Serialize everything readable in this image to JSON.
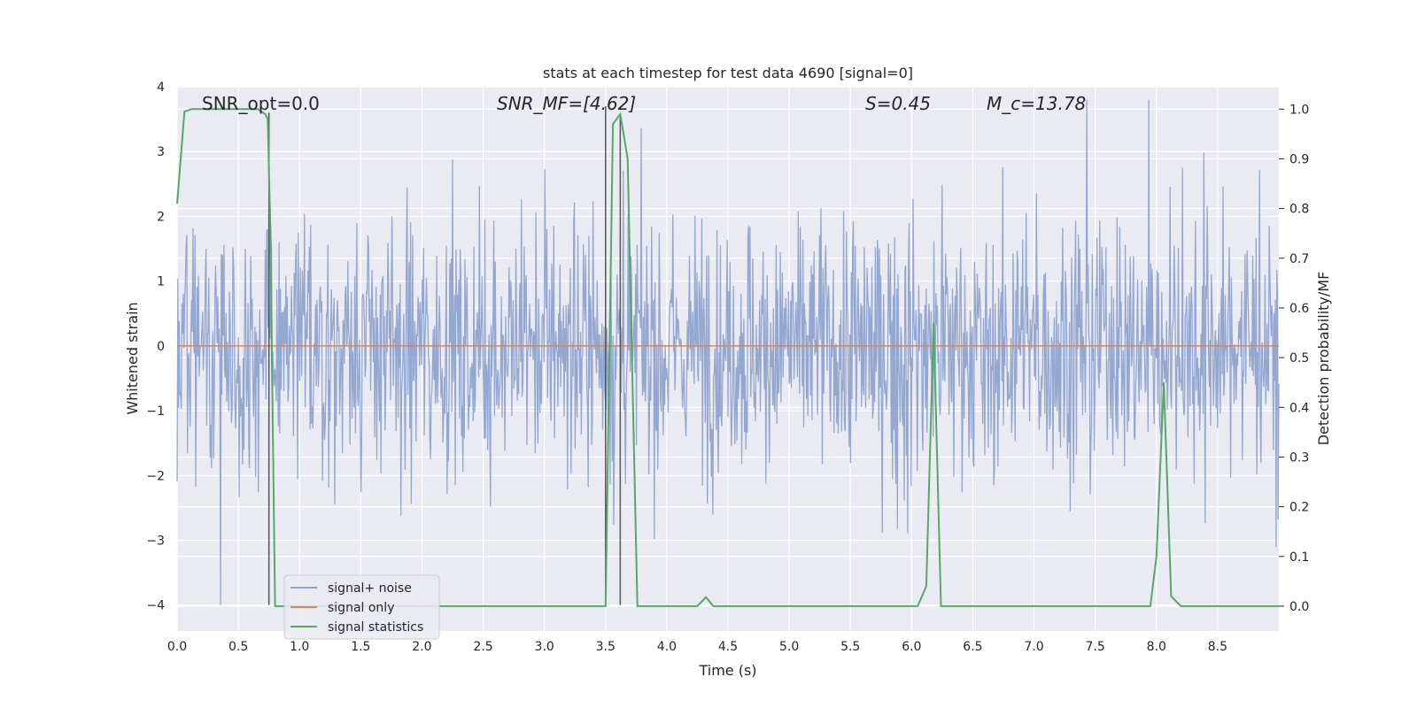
{
  "chart_data": {
    "type": "line",
    "title": "stats at each timestep for test data 4690 [signal=0]",
    "xlabel": "Time (s)",
    "ylabel": "Whitened strain",
    "ylabel_right": "Detection probability/MF",
    "xlim": [
      0,
      9.0
    ],
    "ylim": [
      -4.4,
      4.0
    ],
    "ylim_right": [
      -0.05,
      1.045
    ],
    "x_ticks": [
      0.0,
      0.5,
      1.0,
      1.5,
      2.0,
      2.5,
      3.0,
      3.5,
      4.0,
      4.5,
      5.0,
      5.5,
      6.0,
      6.5,
      7.0,
      7.5,
      8.0,
      8.5
    ],
    "x_tick_labels": [
      "0.0",
      "0.5",
      "1.0",
      "1.5",
      "2.0",
      "2.5",
      "3.0",
      "3.5",
      "4.0",
      "4.5",
      "5.0",
      "5.5",
      "6.0",
      "6.5",
      "7.0",
      "7.5",
      "8.0",
      "8.5"
    ],
    "y_ticks": [
      4,
      3,
      2,
      1,
      0,
      -1,
      -2,
      -3,
      -4
    ],
    "y_tick_labels": [
      "4",
      "3",
      "2",
      "1",
      "0",
      "−1",
      "−2",
      "−3",
      "−4"
    ],
    "y2_ticks": [
      1.0,
      0.9,
      0.8,
      0.7,
      0.6,
      0.5,
      0.4,
      0.3,
      0.2,
      0.1,
      0.0
    ],
    "y2_tick_labels": [
      "1.0",
      "0.9",
      "0.8",
      "0.7",
      "0.6",
      "0.5",
      "0.4",
      "0.3",
      "0.2",
      "0.1",
      "0.0"
    ],
    "grid": true,
    "legend_position": "bottom-left",
    "annotations": [
      {
        "id": "snr-opt",
        "text": "SNR_opt=0.0",
        "x": 0.2
      },
      {
        "id": "snr-mf",
        "text": "SNR_MF=[4.62]",
        "x": 2.6
      },
      {
        "id": "s-value",
        "text": "S=0.45",
        "x": 5.6
      },
      {
        "id": "mc-value",
        "text": "M_c=13.78",
        "x": 6.6
      }
    ],
    "series": [
      {
        "name": "signal+ noise",
        "color": "#8fa3cf",
        "kind": "strain",
        "amplitude_typical": 1.5,
        "amplitude_peak": 4.0
      },
      {
        "name": "signal only",
        "color": "#dd8452",
        "kind": "constant",
        "value": 0.0
      },
      {
        "name": "signal statistics",
        "color": "#55a868",
        "kind": "probability",
        "x": [
          0.0,
          0.06,
          0.12,
          0.2,
          0.4,
          0.55,
          0.66,
          0.72,
          0.74,
          0.76,
          0.8,
          3.48,
          3.5,
          3.56,
          3.62,
          3.68,
          3.76,
          4.25,
          4.32,
          4.38,
          6.05,
          6.12,
          6.18,
          6.24,
          7.95,
          8.0,
          8.06,
          8.12,
          8.2,
          9.0
        ],
        "y": [
          0.81,
          0.995,
          1.0,
          1.0,
          1.0,
          1.0,
          1.0,
          0.99,
          0.98,
          0.78,
          0.0,
          0.0,
          0.0,
          0.97,
          0.99,
          0.9,
          0.0,
          0.0,
          0.018,
          0.0,
          0.0,
          0.04,
          0.57,
          0.0,
          0.0,
          0.1,
          0.45,
          0.02,
          0.0,
          0.0
        ]
      }
    ],
    "vertical_markers": [
      {
        "x": 0.75,
        "y_from": -4.0,
        "y_to": 3.6
      },
      {
        "x": 3.5,
        "y_from": -4.0,
        "y_to": 3.7
      },
      {
        "x": 3.62,
        "y_from": -4.0,
        "y_to": 3.55
      }
    ]
  }
}
